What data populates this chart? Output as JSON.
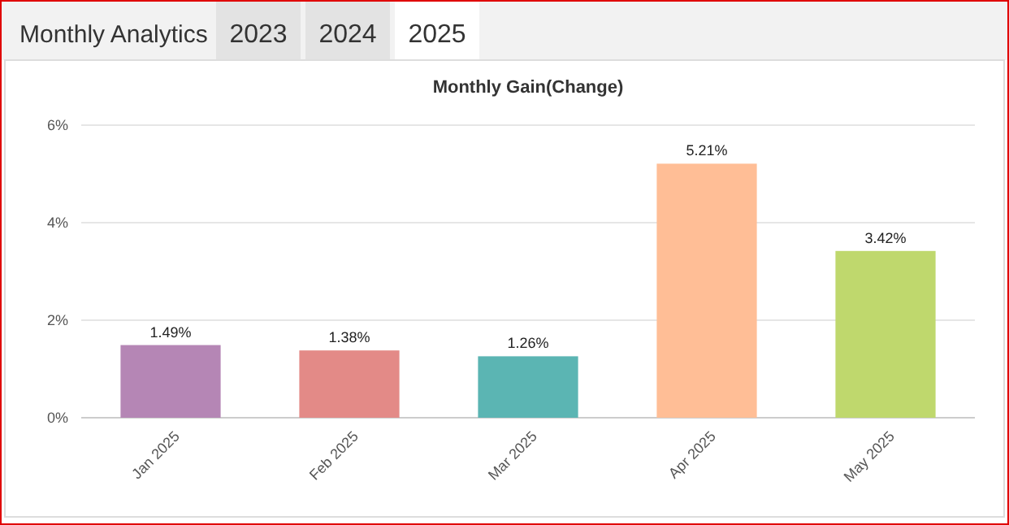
{
  "chart_data": {
    "type": "bar",
    "title": "Monthly Gain(Change)",
    "annotations": [
      "Monthly Analytics",
      "2023",
      "2024",
      "2025"
    ],
    "categories": [
      "Jan 2025",
      "Feb 2025",
      "Mar 2025",
      "Apr 2025",
      "May 2025"
    ],
    "values": [
      1.49,
      1.38,
      1.26,
      5.21,
      3.42
    ],
    "colors": [
      "#b586b5",
      "#e38a87",
      "#5bb5b3",
      "#ffbe96",
      "#bfd86d"
    ],
    "value_labels": [
      "1.49%",
      "1.38%",
      "1.26%",
      "5.21%",
      "3.42%"
    ],
    "ylim": [
      0,
      6
    ],
    "yticks": [
      {
        "value": 0,
        "label": "0%"
      },
      {
        "value": 2,
        "label": "2%"
      },
      {
        "value": 4,
        "label": "4%"
      },
      {
        "value": 6,
        "label": "6%"
      }
    ],
    "grid": "y"
  }
}
